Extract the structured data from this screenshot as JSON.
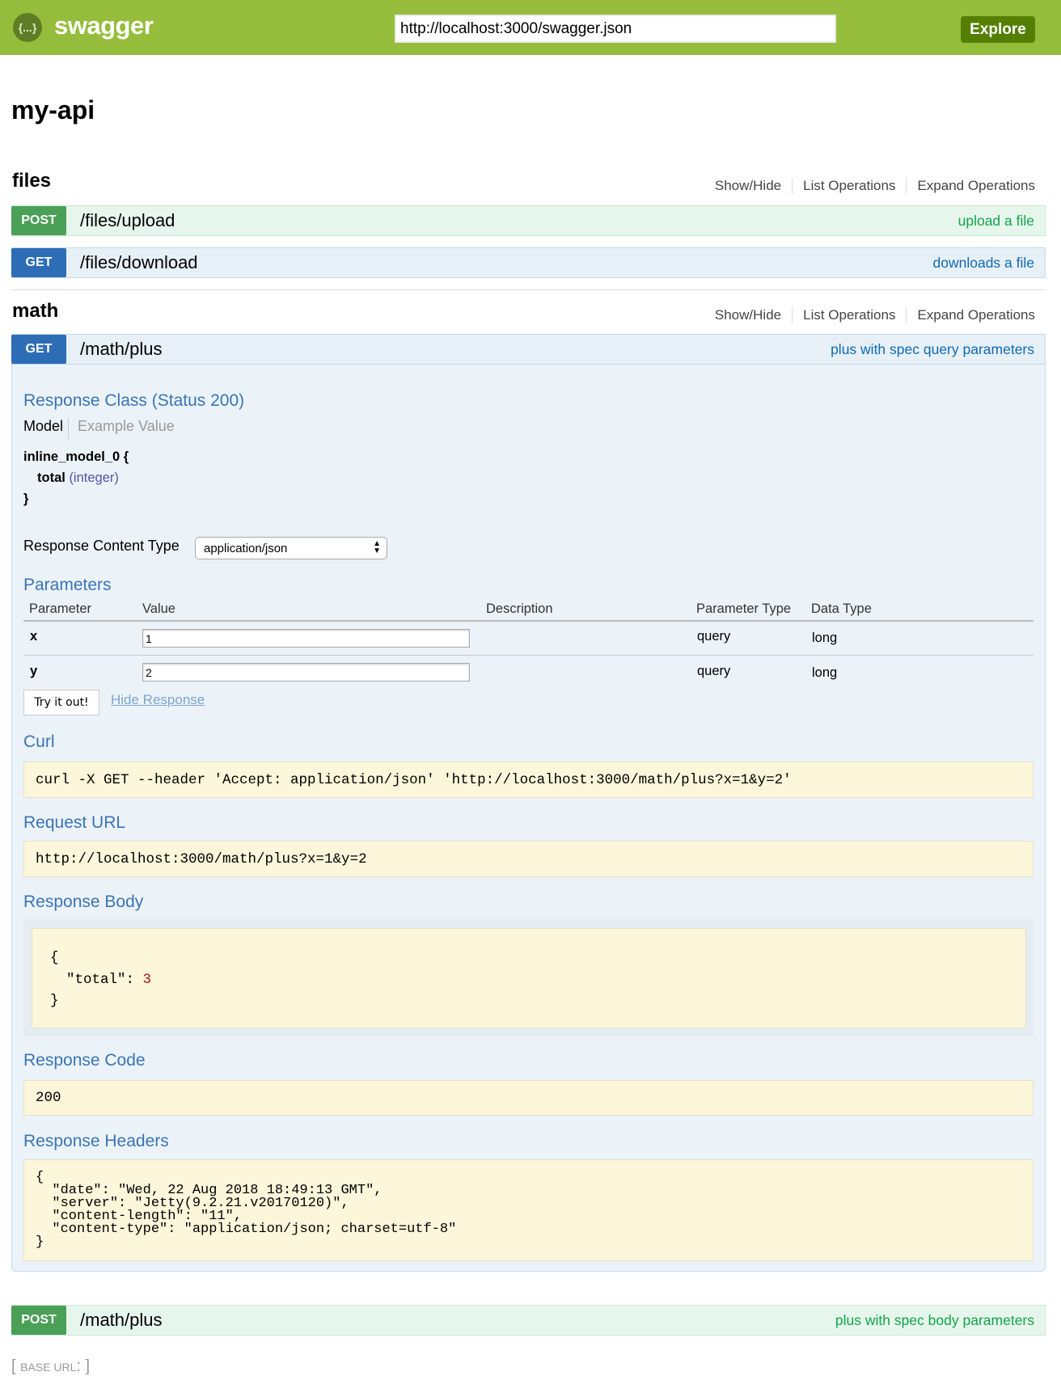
{
  "header": {
    "logo_text": "swagger",
    "logo_glyph": "{...}",
    "url": "http://localhost:3000/swagger.json",
    "explore_label": "Explore"
  },
  "title": "my-api",
  "section_links": {
    "show_hide": "Show/Hide",
    "list": "List Operations",
    "expand": "Expand Operations"
  },
  "sections": [
    {
      "name": "files",
      "operations": [
        {
          "method": "POST",
          "path": "/files/upload",
          "summary": "upload a file"
        },
        {
          "method": "GET",
          "path": "/files/download",
          "summary": "downloads a file"
        }
      ]
    },
    {
      "name": "math",
      "operations": [
        {
          "method": "GET",
          "path": "/math/plus",
          "summary": "plus with spec query parameters"
        },
        {
          "method": "POST",
          "path": "/math/plus",
          "summary": "plus with spec body parameters"
        }
      ]
    }
  ],
  "expanded": {
    "response_class": "Response Class (Status 200)",
    "model_tab": "Model",
    "example_tab": "Example Value",
    "model_name": "inline_model_0 {",
    "model_field": "total",
    "model_type": "(integer)",
    "model_close": "}",
    "content_type_label": "Response Content Type",
    "content_type": "application/json",
    "parameters_title": "Parameters",
    "columns": [
      "Parameter",
      "Value",
      "Description",
      "Parameter Type",
      "Data Type"
    ],
    "params": [
      {
        "name": "x",
        "value": "1",
        "ptype": "query",
        "dtype": "long"
      },
      {
        "name": "y",
        "value": "2",
        "ptype": "query",
        "dtype": "long"
      }
    ],
    "try_label": "Try it out!",
    "hide_label": "Hide Response",
    "curl_title": "Curl",
    "curl": "curl -X GET --header 'Accept: application/json' 'http://localhost:3000/math/plus?x=1&y=2'",
    "request_url_title": "Request URL",
    "request_url": "http://localhost:3000/math/plus?x=1&y=2",
    "body_title": "Response Body",
    "body_open": "{",
    "body_key": "\"total\": ",
    "body_value": "3",
    "body_close": "}",
    "code_title": "Response Code",
    "code": "200",
    "headers_title": "Response Headers",
    "headers": "{\n  \"date\": \"Wed, 22 Aug 2018 18:49:13 GMT\",\n  \"server\": \"Jetty(9.2.21.v20170120)\",\n  \"content-length\": \"11\",\n  \"content-type\": \"application/json; charset=utf-8\"\n}"
  },
  "base_url": {
    "open": "[",
    "label": "BASE URL",
    "colon": ":",
    "close": "]"
  },
  "colors": {
    "header": "#95bd3b",
    "post": "#4aa057",
    "get": "#2d6db5",
    "explore": "#547f00"
  }
}
